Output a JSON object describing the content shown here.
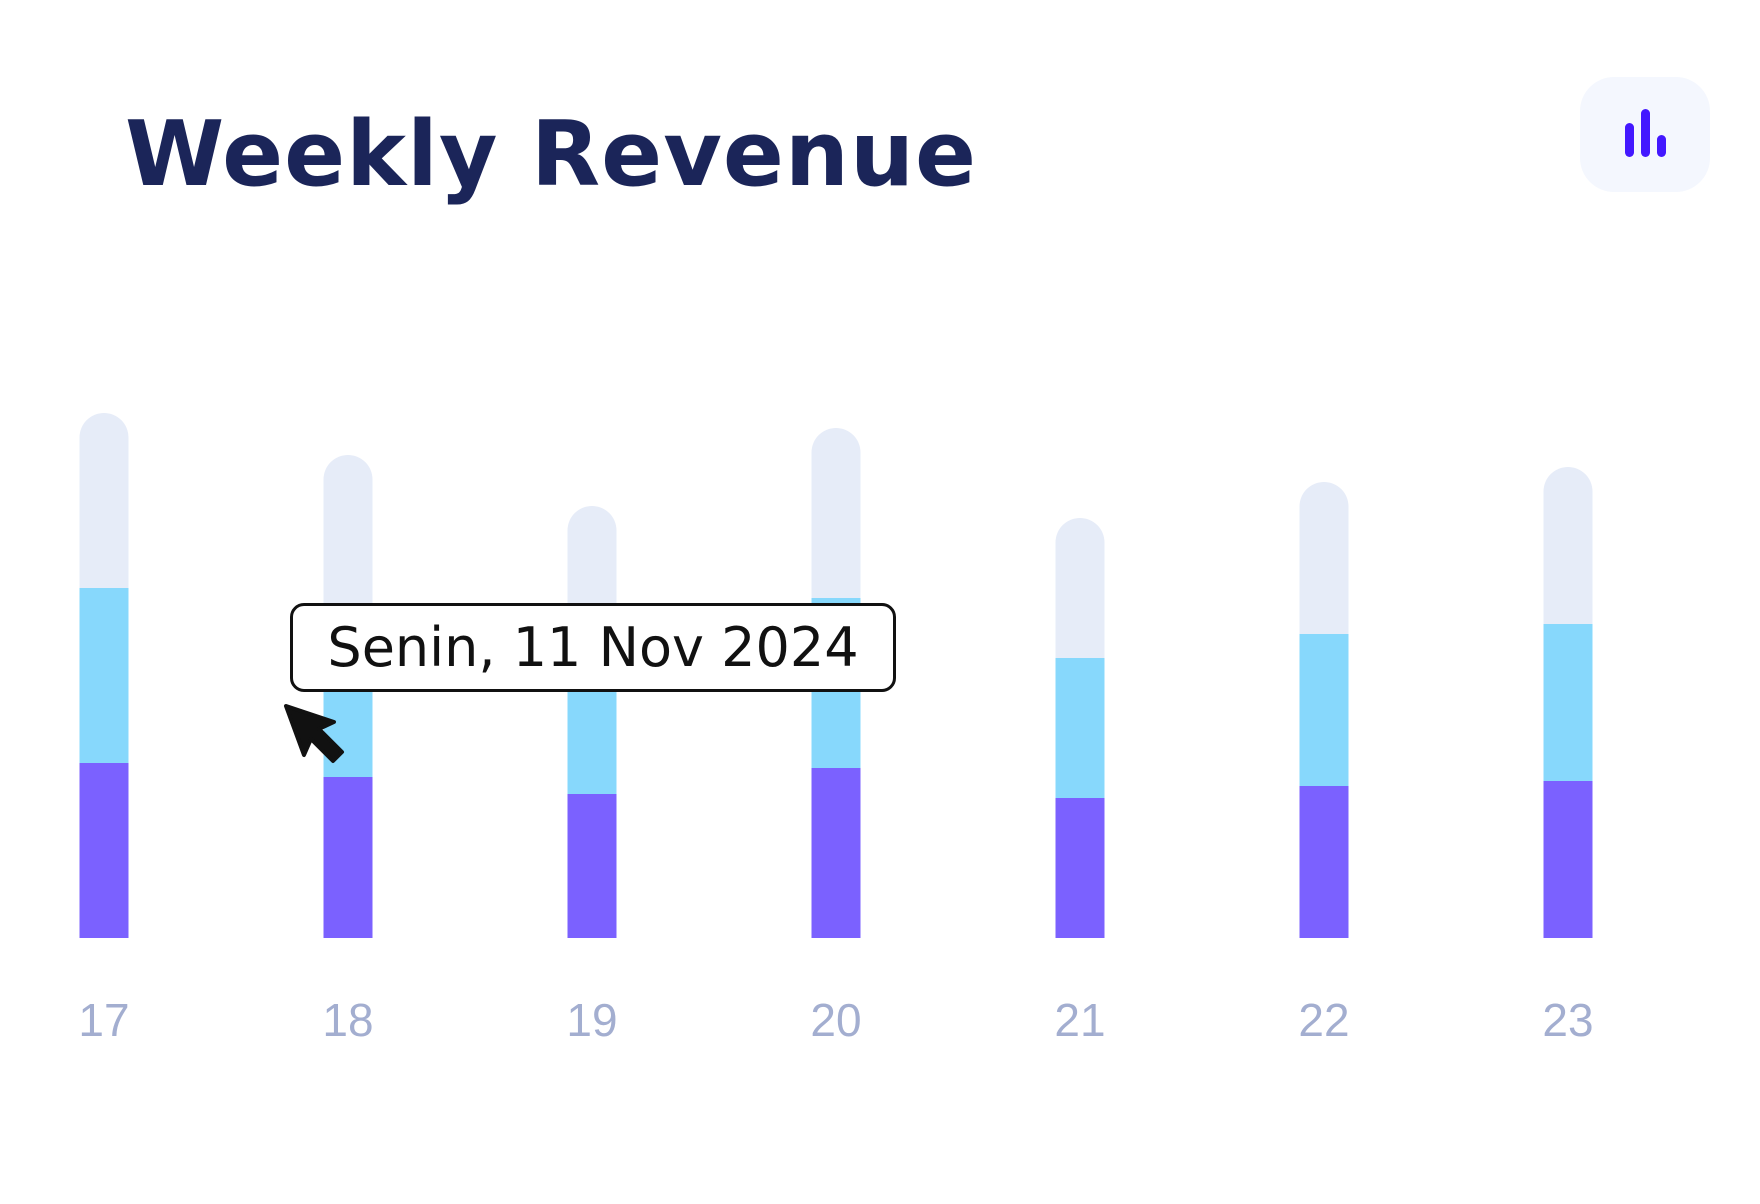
{
  "header": {
    "title": "Weekly Revenue",
    "chart_icon": "bar-chart-icon"
  },
  "tooltip": {
    "text": "Senin, 11 Nov 2024"
  },
  "colors": {
    "title": "#1b2559",
    "icon": "#4318ff",
    "icon_bg": "#f4f7fe",
    "series_bottom": "#7b61ff",
    "series_middle": "#87d8fc",
    "series_top": "#e6ecf8",
    "tick_label": "#a3aed0"
  },
  "chart_data": {
    "type": "bar",
    "stacked": true,
    "categories": [
      "17",
      "18",
      "19",
      "20",
      "21",
      "22",
      "23"
    ],
    "series": [
      {
        "values": [
          175,
          161,
          144,
          170,
          140,
          152,
          157
        ]
      },
      {
        "values": [
          175,
          161,
          144,
          170,
          140,
          152,
          157
        ]
      },
      {
        "values": [
          175,
          161,
          144,
          170,
          140,
          152,
          157
        ]
      }
    ],
    "ylim": [
      0,
      525
    ],
    "grid": false,
    "legend": false
  }
}
